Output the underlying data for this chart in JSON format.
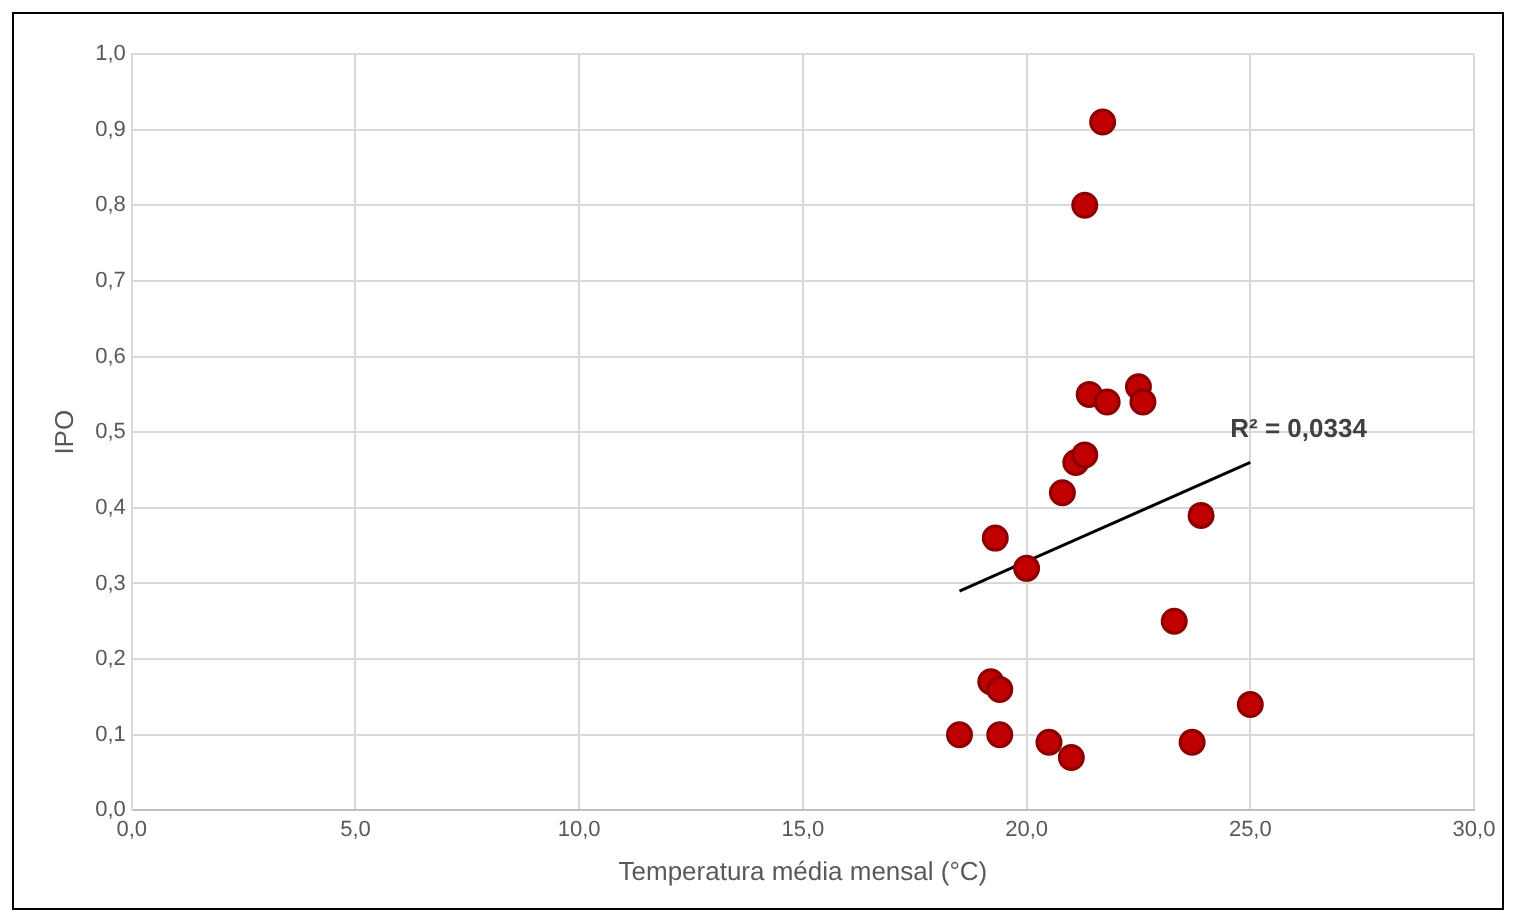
{
  "chart_data": {
    "type": "scatter",
    "xlabel": "Temperatura média mensal (°C)",
    "ylabel": "IPO",
    "marker": "circle",
    "grid": true,
    "legend": false,
    "xlim": [
      0,
      30
    ],
    "xticks": [
      {
        "value": 0,
        "label": "0,0"
      },
      {
        "value": 5,
        "label": "5,0"
      },
      {
        "value": 10,
        "label": "10,0"
      },
      {
        "value": 15,
        "label": "15,0"
      },
      {
        "value": 20,
        "label": "20,0"
      },
      {
        "value": 25,
        "label": "25,0"
      },
      {
        "value": 30,
        "label": "30,0"
      }
    ],
    "ylim": [
      0,
      1
    ],
    "yticks": [
      {
        "value": 0,
        "label": "0,0"
      },
      {
        "value": 0.1,
        "label": "0,1"
      },
      {
        "value": 0.2,
        "label": "0,2"
      },
      {
        "value": 0.3,
        "label": "0,3"
      },
      {
        "value": 0.4,
        "label": "0,4"
      },
      {
        "value": 0.5,
        "label": "0,5"
      },
      {
        "value": 0.6,
        "label": "0,6"
      },
      {
        "value": 0.7,
        "label": "0,7"
      },
      {
        "value": 0.8,
        "label": "0,8"
      },
      {
        "value": 0.9,
        "label": "0,9"
      },
      {
        "value": 1,
        "label": "1,0"
      }
    ],
    "series": [
      {
        "color": "#c00000",
        "x": [
          21.7,
          21.3,
          21.4,
          21.8,
          22.5,
          22.6,
          21.1,
          21.3,
          20.8,
          19.3,
          20.0,
          23.9,
          23.3,
          19.2,
          19.4,
          18.5,
          19.4,
          20.5,
          21.0,
          23.7,
          25.0
        ],
        "values": [
          0.91,
          0.8,
          0.55,
          0.54,
          0.56,
          0.54,
          0.46,
          0.47,
          0.42,
          0.36,
          0.32,
          0.39,
          0.25,
          0.17,
          0.16,
          0.1,
          0.1,
          0.09,
          0.07,
          0.09,
          0.14
        ]
      },
      {
        "type": "line",
        "color": "#000000",
        "marker": "none",
        "x": [
          18.5,
          25.0
        ],
        "values": [
          0.29,
          0.46
        ]
      }
    ],
    "annotations": [
      {
        "text": "R² = 0,0334",
        "x": 25.0,
        "y": 0.46
      }
    ]
  }
}
